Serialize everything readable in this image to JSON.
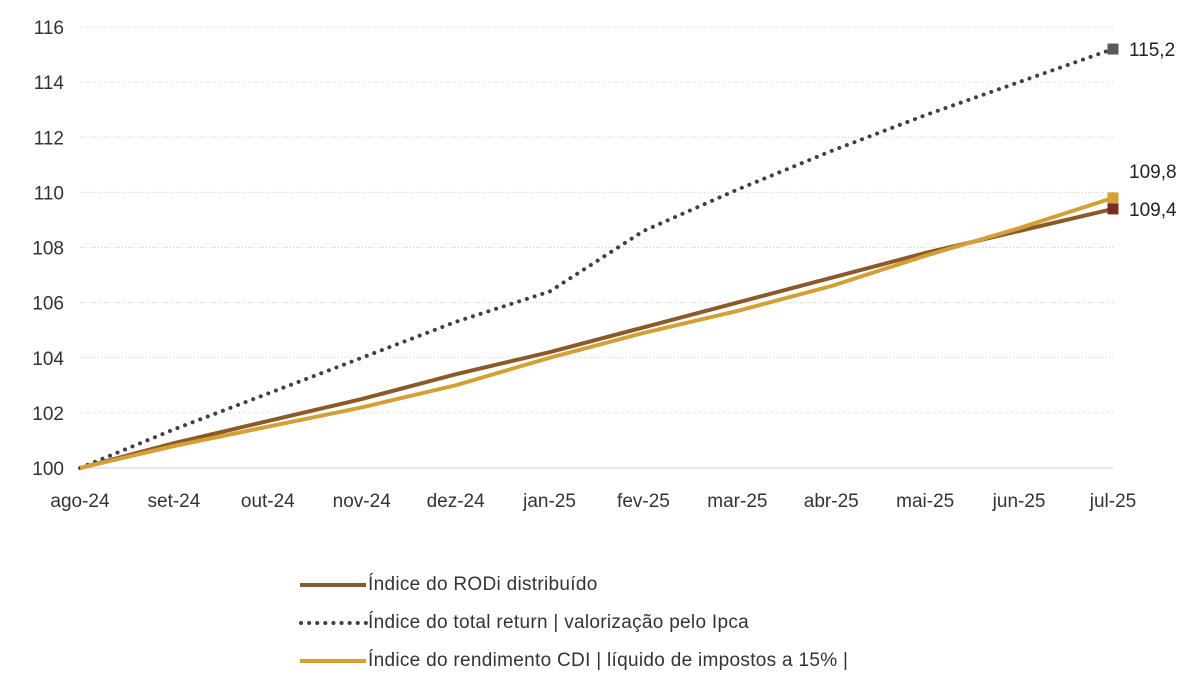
{
  "chart_data": {
    "type": "line",
    "categories": [
      "ago-24",
      "set-24",
      "out-24",
      "nov-24",
      "dez-24",
      "jan-25",
      "fev-25",
      "mar-25",
      "abr-25",
      "mai-25",
      "jun-25",
      "jul-25"
    ],
    "ylim": [
      100,
      116
    ],
    "yticks": [
      100,
      102,
      104,
      106,
      108,
      110,
      112,
      114,
      116
    ],
    "grid": true,
    "legend_position": "bottom",
    "series": [
      {
        "name": "Índice do RODi distribuído",
        "color": "#8B5A2B",
        "style": "solid",
        "marker_color": "#7B2C22",
        "values": [
          100,
          100.9,
          101.7,
          102.5,
          103.4,
          104.2,
          105.1,
          106.0,
          106.9,
          107.8,
          108.6,
          109.4
        ],
        "end_label": "109,4"
      },
      {
        "name": "Índice do total return | valorização pelo Ipca",
        "color": "#404040",
        "style": "dotted",
        "marker_color": "#595959",
        "values": [
          100,
          101.4,
          102.7,
          104.0,
          105.3,
          106.4,
          108.6,
          110.1,
          111.5,
          112.8,
          114.0,
          115.2
        ],
        "end_label": "115,2"
      },
      {
        "name": "Índice do rendimento CDI | líquido de impostos a 15% |",
        "color": "#D4A036",
        "style": "solid",
        "marker_color": "#D4A036",
        "values": [
          100,
          100.8,
          101.5,
          102.2,
          103.0,
          104.0,
          104.9,
          105.7,
          106.6,
          107.7,
          108.7,
          109.8
        ],
        "end_label": "109,8"
      }
    ]
  }
}
